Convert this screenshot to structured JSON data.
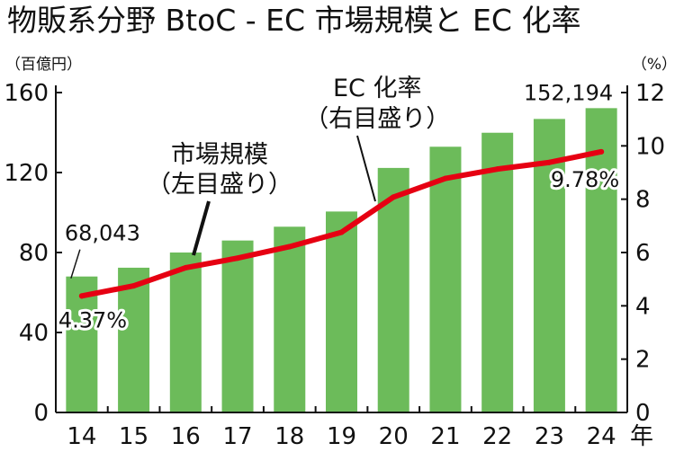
{
  "chart_data": {
    "type": "bar+line",
    "title": "物販系分野 BtoC - EC 市場規模と EC 化率",
    "x_unit_label": "年",
    "categories": [
      "14",
      "15",
      "16",
      "17",
      "18",
      "19",
      "20",
      "21",
      "22",
      "23",
      "24"
    ],
    "left_axis": {
      "unit": "（百億円）",
      "ticks": [
        "0",
        "40",
        "80",
        "120",
        "160"
      ],
      "ylim": [
        0,
        160
      ]
    },
    "right_axis": {
      "unit": "（%）",
      "ticks": [
        "0",
        "2",
        "4",
        "6",
        "8",
        "10",
        "12"
      ],
      "ylim": [
        0,
        12
      ]
    },
    "series": [
      {
        "name": "市場規模（左目盛り）",
        "kind": "bar",
        "axis": "left",
        "color": "#6cbb5a",
        "values": [
          68.0,
          72.4,
          80.0,
          86.0,
          92.9,
          100.5,
          122.3,
          132.9,
          139.9,
          146.8,
          152.2
        ]
      },
      {
        "name": "EC 化率（右目盛り）",
        "kind": "line",
        "axis": "right",
        "color": "#e60012",
        "values": [
          4.37,
          4.75,
          5.43,
          5.79,
          6.22,
          6.76,
          8.08,
          8.78,
          9.13,
          9.38,
          9.78
        ]
      }
    ],
    "labels": {
      "bar_first": "68,043",
      "bar_last": "152,194",
      "line_first": "4.37%",
      "line_last": "9.78%"
    },
    "callouts": {
      "bar_line1": "市場規模",
      "bar_line2": "（左目盛り）",
      "line_line1": "EC 化率",
      "line_line2": "（右目盛り）"
    },
    "grid": false
  }
}
